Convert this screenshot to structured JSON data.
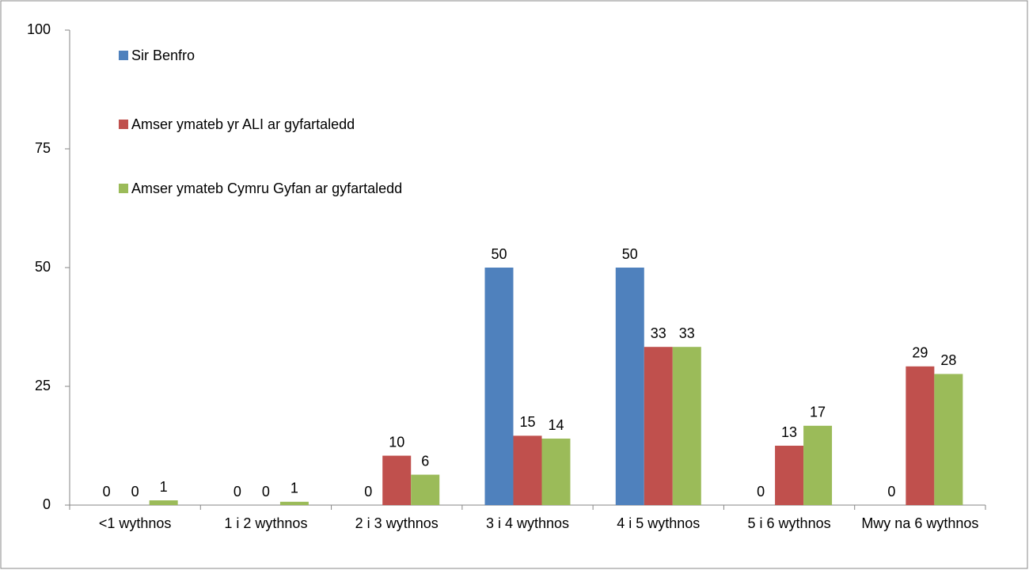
{
  "chart_data": {
    "type": "bar",
    "categories": [
      "<1 wythnos",
      "1 i 2 wythnos",
      "2 i 3 wythnos",
      "3 i 4 wythnos",
      "4 i 5 wythnos",
      "5 i 6 wythnos",
      "Mwy na 6 wythnos"
    ],
    "series": [
      {
        "name": "Sir Benfro",
        "color": "#4f81bd",
        "values": [
          0,
          0,
          0,
          50,
          50,
          0,
          0
        ]
      },
      {
        "name": "Amser ymateb yr ALI ar gyfartaledd",
        "color": "#c0504d",
        "values": [
          0,
          0,
          10.4,
          14.6,
          33.3,
          12.5,
          29.2
        ],
        "value_labels": [
          "0",
          "0",
          "10",
          "15",
          "33",
          "13",
          "29"
        ]
      },
      {
        "name": "Amser ymateb Cymru Gyfan ar gyfartaledd",
        "color": "#9bbb59",
        "values": [
          1,
          0.7,
          6.4,
          14,
          33.3,
          16.7,
          27.6
        ],
        "value_labels": [
          "1",
          "1",
          "6",
          "14",
          "33",
          "17",
          "28"
        ]
      }
    ],
    "ylim": [
      0,
      100
    ],
    "yticks": [
      0,
      25,
      50,
      75,
      100
    ],
    "grid": false,
    "legend": "top-left"
  }
}
